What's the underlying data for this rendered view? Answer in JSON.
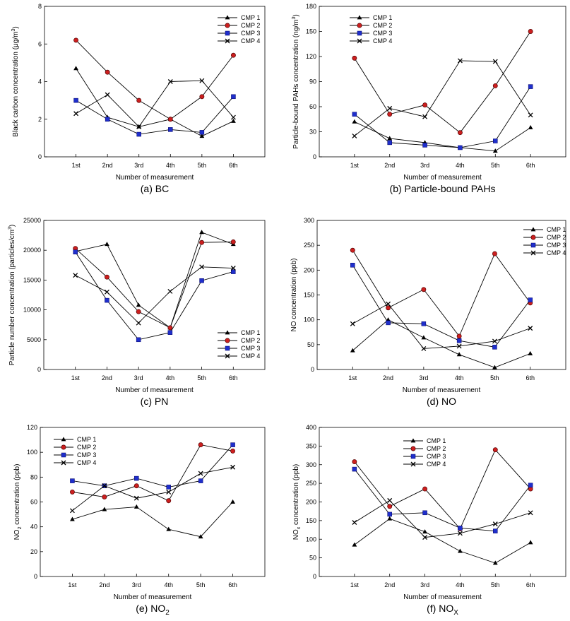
{
  "chart_data": [
    {
      "id": "a",
      "type": "line",
      "caption": "(a) BC",
      "caption_main": "(a) BC",
      "caption_sub": "",
      "title": "",
      "xlabel": "Number of measurement",
      "ylabel": "Black carbon concentration (μg/m",
      "ylabel_sup": "3",
      "ylabel_tail": ")",
      "categories": [
        "1st",
        "2nd",
        "3rd",
        "4th",
        "5th",
        "6th"
      ],
      "ylim": [
        0,
        8
      ],
      "yticks": [
        0,
        2,
        4,
        6,
        8
      ],
      "legend_loc": "top-right",
      "series": [
        {
          "name": "CMP 1",
          "values": [
            4.7,
            2.1,
            1.6,
            2.0,
            1.1,
            1.9
          ]
        },
        {
          "name": "CMP 2",
          "values": [
            6.2,
            4.5,
            3.0,
            2.0,
            3.2,
            5.4
          ]
        },
        {
          "name": "CMP 3",
          "values": [
            3.0,
            2.0,
            1.2,
            1.45,
            1.3,
            3.2
          ]
        },
        {
          "name": "CMP 4",
          "values": [
            2.3,
            3.3,
            1.6,
            4.0,
            4.05,
            2.1
          ]
        }
      ]
    },
    {
      "id": "b",
      "type": "line",
      "caption": "(b) Particle-bound PAHs",
      "caption_main": "(b) Particle-bound PAHs",
      "caption_sub": "",
      "title": "",
      "xlabel": "Number of measurement",
      "ylabel": "Particle-bound PAHs concentration (ng/m",
      "ylabel_sup": "3",
      "ylabel_tail": ")",
      "categories": [
        "1st",
        "2nd",
        "3rd",
        "4th",
        "5th",
        "6th"
      ],
      "ylim": [
        0,
        180
      ],
      "yticks": [
        0,
        30,
        60,
        90,
        120,
        150,
        180
      ],
      "legend_loc": "top-left",
      "series": [
        {
          "name": "CMP 1",
          "values": [
            42,
            22,
            17,
            11,
            7,
            35
          ]
        },
        {
          "name": "CMP 2",
          "values": [
            118,
            51,
            62,
            29,
            85,
            150
          ]
        },
        {
          "name": "CMP 3",
          "values": [
            51,
            17,
            14,
            11,
            19,
            84
          ]
        },
        {
          "name": "CMP 4",
          "values": [
            25,
            58,
            48,
            115,
            114,
            50
          ]
        }
      ]
    },
    {
      "id": "c",
      "type": "line",
      "caption": "(c) PN",
      "caption_main": "(c) PN",
      "caption_sub": "",
      "title": "",
      "xlabel": "Number of measurement",
      "ylabel": "Particle number concentration (particles/cm",
      "ylabel_sup": "3",
      "ylabel_tail": ")",
      "categories": [
        "1st",
        "2nd",
        "3rd",
        "4th",
        "5th",
        "6th"
      ],
      "ylim": [
        0,
        25000
      ],
      "yticks": [
        0,
        5000,
        10000,
        15000,
        20000,
        25000
      ],
      "legend_loc": "bottom-right",
      "series": [
        {
          "name": "CMP 1",
          "values": [
            19800,
            21000,
            10800,
            7000,
            23000,
            21000
          ]
        },
        {
          "name": "CMP 2",
          "values": [
            20300,
            15500,
            9700,
            7000,
            21300,
            21400
          ]
        },
        {
          "name": "CMP 3",
          "values": [
            19700,
            11600,
            5000,
            6200,
            14900,
            16400
          ]
        },
        {
          "name": "CMP 4",
          "values": [
            15800,
            13000,
            7800,
            13100,
            17200,
            17000
          ]
        }
      ]
    },
    {
      "id": "d",
      "type": "line",
      "caption": "(d) NO",
      "caption_main": "(d) NO",
      "caption_sub": "",
      "title": "",
      "xlabel": "Number of measurement",
      "ylabel": "NO concentration (ppb)",
      "ylabel_sup": "",
      "ylabel_tail": "",
      "categories": [
        "1st",
        "2nd",
        "3rd",
        "4th",
        "5th",
        "6th"
      ],
      "ylim": [
        0,
        300
      ],
      "yticks": [
        0,
        50,
        100,
        150,
        200,
        250,
        300
      ],
      "legend_loc": "top-right",
      "series": [
        {
          "name": "CMP 1",
          "values": [
            38,
            100,
            64,
            30,
            4,
            32
          ]
        },
        {
          "name": "CMP 2",
          "values": [
            240,
            124,
            161,
            67,
            233,
            134
          ]
        },
        {
          "name": "CMP 3",
          "values": [
            210,
            94,
            92,
            58,
            45,
            140
          ]
        },
        {
          "name": "CMP 4",
          "values": [
            92,
            132,
            42,
            47,
            57,
            83
          ]
        }
      ]
    },
    {
      "id": "e",
      "type": "line",
      "caption": "(e) NO2",
      "caption_main": "(e) NO",
      "caption_sub": "2",
      "title": "",
      "xlabel": "Number of measurement",
      "ylabel": "NO",
      "ylabel_sub": "2",
      "ylabel_tail": " concentration (ppb)",
      "categories": [
        "1st",
        "2nd",
        "3rd",
        "4th",
        "5th",
        "6th"
      ],
      "ylim": [
        0,
        120
      ],
      "yticks": [
        0,
        20,
        40,
        60,
        80,
        100,
        120
      ],
      "legend_loc": "top-left",
      "series": [
        {
          "name": "CMP 1",
          "values": [
            46,
            54,
            56,
            38,
            32,
            60
          ]
        },
        {
          "name": "CMP 2",
          "values": [
            68,
            64,
            73,
            61,
            106,
            101
          ]
        },
        {
          "name": "CMP 3",
          "values": [
            77,
            73,
            79,
            72,
            77,
            106
          ]
        },
        {
          "name": "CMP 4",
          "values": [
            53,
            73,
            63,
            68,
            83,
            88
          ]
        }
      ]
    },
    {
      "id": "f",
      "type": "line",
      "caption": "(f) NOX",
      "caption_main": "(f) NO",
      "caption_sub": "X",
      "title": "",
      "xlabel": "Number of measurement",
      "ylabel": "NO",
      "ylabel_sub": "x",
      "ylabel_tail": " concentration (ppb)",
      "categories": [
        "1st",
        "2nd",
        "3rd",
        "4th",
        "5th",
        "6th"
      ],
      "ylim": [
        0,
        400
      ],
      "yticks": [
        0,
        50,
        100,
        150,
        200,
        250,
        300,
        350,
        400
      ],
      "legend_loc": "top-left",
      "series": [
        {
          "name": "CMP 1",
          "values": [
            85,
            155,
            120,
            68,
            36,
            91
          ]
        },
        {
          "name": "CMP 2",
          "values": [
            308,
            188,
            235,
            128,
            340,
            235
          ]
        },
        {
          "name": "CMP 3",
          "values": [
            288,
            167,
            171,
            130,
            122,
            245
          ]
        },
        {
          "name": "CMP 4",
          "values": [
            145,
            204,
            105,
            116,
            141,
            171
          ]
        }
      ]
    }
  ],
  "colors": {
    "line": "#000000",
    "cmp1": "#000000",
    "cmp2_fill": "#cc1f1f",
    "cmp2_stroke": "#550000",
    "cmp3_fill": "#1f2fcc",
    "cmp3_stroke": "#000066",
    "cmp4": "#000000"
  },
  "markers": [
    "triangle",
    "circle",
    "square",
    "x"
  ]
}
